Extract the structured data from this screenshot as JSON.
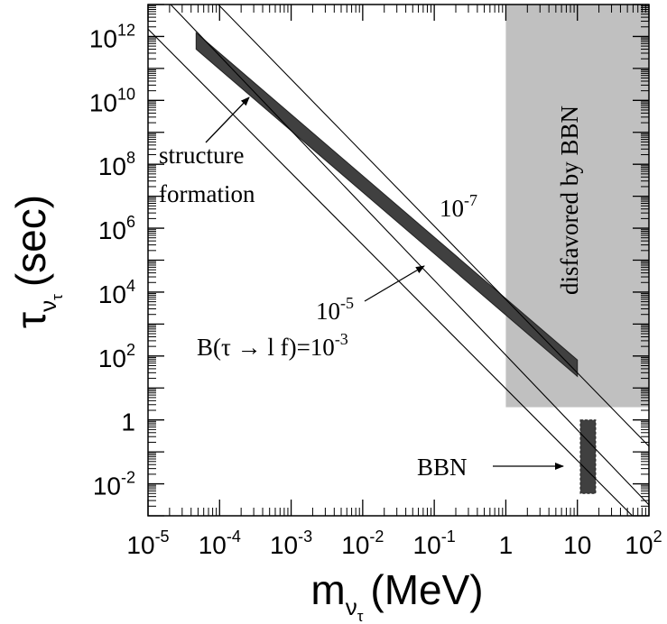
{
  "chart_data": {
    "type": "line",
    "title": "",
    "xlabel": {
      "base": "m",
      "sub": "ν",
      "subsub": "τ",
      "unit": "(MeV)"
    },
    "ylabel": {
      "base": "τ",
      "sub": "ν",
      "subsub": "τ",
      "unit": "(sec)"
    },
    "x_scale": "log",
    "y_scale": "log",
    "xlim": [
      1e-05,
      100
    ],
    "ylim": [
      0.001,
      10000000000000.0
    ],
    "x_ticks": [
      {
        "value": 1e-05,
        "base": "10",
        "exp": "-5"
      },
      {
        "value": 0.0001,
        "base": "10",
        "exp": "-4"
      },
      {
        "value": 0.001,
        "base": "10",
        "exp": "-3"
      },
      {
        "value": 0.01,
        "base": "10",
        "exp": "-2"
      },
      {
        "value": 0.1,
        "base": "10",
        "exp": "-1"
      },
      {
        "value": 1,
        "base": "1",
        "exp": ""
      },
      {
        "value": 10,
        "base": "10",
        "exp": ""
      },
      {
        "value": 100,
        "base": "10",
        "exp": "2"
      }
    ],
    "y_ticks": [
      {
        "value": 0.01,
        "base": "10",
        "exp": "-2"
      },
      {
        "value": 1,
        "base": "1",
        "exp": ""
      },
      {
        "value": 100.0,
        "base": "10",
        "exp": "2"
      },
      {
        "value": 10000.0,
        "base": "10",
        "exp": "4"
      },
      {
        "value": 1000000.0,
        "base": "10",
        "exp": "6"
      },
      {
        "value": 100000000.0,
        "base": "10",
        "exp": "8"
      },
      {
        "value": 10000000000.0,
        "base": "10",
        "exp": "10"
      },
      {
        "value": 1000000000000.0,
        "base": "10",
        "exp": "12"
      }
    ],
    "series": [
      {
        "label": "10^-3",
        "x": [
          1e-05,
          100
        ],
        "y": [
          1700000000000.0,
          0.0003
        ]
      },
      {
        "label": "10^-5",
        "x": [
          1e-05,
          100
        ],
        "y": [
          55000000000000.0,
          0.0022
        ]
      },
      {
        "label": "10^-7",
        "x": [
          1e-05,
          100
        ],
        "y": [
          1800000000000000.0,
          0.15
        ]
      }
    ],
    "bands": [
      {
        "name": "structure formation",
        "x": [
          4.7e-05,
          10
        ],
        "y_low": [
          400000000000.0,
          23
        ],
        "y_high": [
          1300000000000.0,
          75
        ]
      }
    ],
    "regions": [
      {
        "name": "disfavored by BBN",
        "x": [
          1,
          100
        ],
        "y": [
          2.5,
          10000000000000.0
        ],
        "color": "#c0c0c0"
      },
      {
        "name": "BBN",
        "x": [
          11,
          18
        ],
        "y": [
          0.005,
          1.0
        ],
        "color": "#404040"
      }
    ],
    "annotations": {
      "structure": {
        "lines": [
          "structure",
          "formation"
        ]
      },
      "bbn_box": {
        "text": "BBN"
      },
      "disfavored": {
        "text": "disfavored by BBN"
      },
      "line_1e7": {
        "base": "10",
        "exp": "-7"
      },
      "line_1e5": {
        "base": "10",
        "exp": "-5"
      },
      "line_1e3": {
        "prefix": "B(τ → l f)=10",
        "exp": "-3"
      }
    },
    "colors": {
      "band": "#404040",
      "shade": "#c0c0c0",
      "line": "#000000"
    }
  }
}
